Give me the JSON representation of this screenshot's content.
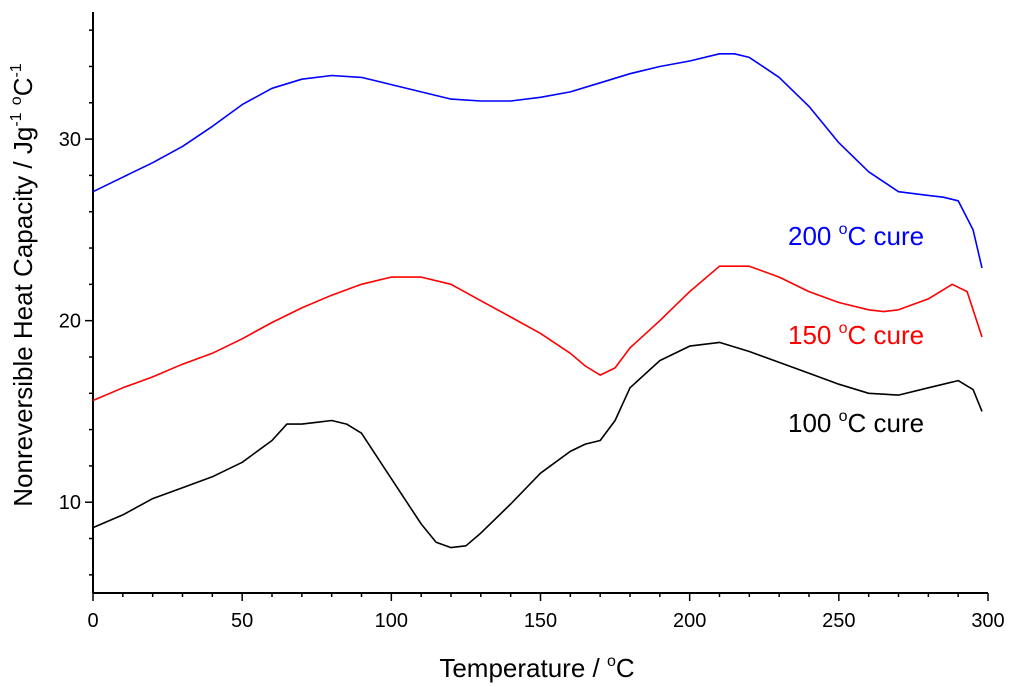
{
  "chart_data": {
    "type": "line",
    "title": "",
    "xlabel": {
      "main": "Temperature / ",
      "sup": "o",
      "tail": "C"
    },
    "ylabel": {
      "a": "Nonreversible Heat Capacity / Jg",
      "sup1": "-1",
      "b": " ",
      "sup2": "o",
      "c": "C",
      "sup3": "-1"
    },
    "xlim": [
      0,
      300
    ],
    "ylim": [
      5,
      37
    ],
    "xticks": [
      0,
      50,
      100,
      150,
      200,
      250,
      300
    ],
    "yticks": [
      10,
      20,
      30
    ],
    "grid": false,
    "series": [
      {
        "name": "200 °C cure",
        "label": {
          "num": "200 ",
          "sup": "o",
          "rest": "C cure"
        },
        "color": "#0000ff",
        "x": [
          0,
          10,
          20,
          30,
          40,
          50,
          60,
          70,
          80,
          90,
          100,
          110,
          120,
          130,
          140,
          150,
          160,
          170,
          180,
          190,
          200,
          210,
          215,
          220,
          230,
          240,
          250,
          260,
          270,
          280,
          285,
          290,
          295,
          298
        ],
        "y": [
          27.1,
          27.9,
          28.7,
          29.6,
          30.7,
          31.9,
          32.8,
          33.3,
          33.5,
          33.4,
          33.0,
          32.6,
          32.2,
          32.1,
          32.1,
          32.3,
          32.6,
          33.1,
          33.6,
          34.0,
          34.3,
          34.7,
          34.7,
          34.5,
          33.4,
          31.8,
          29.8,
          28.2,
          27.1,
          26.9,
          26.8,
          26.6,
          25.0,
          22.9
        ]
      },
      {
        "name": "150 °C cure",
        "label": {
          "num": "150 ",
          "sup": "o",
          "rest": "C cure"
        },
        "color": "#ff0000",
        "x": [
          0,
          10,
          20,
          30,
          40,
          50,
          60,
          70,
          80,
          90,
          100,
          110,
          120,
          130,
          140,
          150,
          160,
          165,
          170,
          175,
          180,
          190,
          200,
          210,
          220,
          230,
          240,
          250,
          260,
          265,
          270,
          280,
          288,
          293,
          298
        ],
        "y": [
          15.6,
          16.3,
          16.9,
          17.6,
          18.2,
          19.0,
          19.9,
          20.7,
          21.4,
          22.0,
          22.4,
          22.4,
          22.0,
          21.1,
          20.2,
          19.3,
          18.2,
          17.5,
          17.0,
          17.4,
          18.5,
          20.0,
          21.6,
          23.0,
          23.0,
          22.4,
          21.6,
          21.0,
          20.6,
          20.5,
          20.6,
          21.2,
          22.0,
          21.6,
          19.1
        ]
      },
      {
        "name": "100 °C cure",
        "label": {
          "num": "100 ",
          "sup": "o",
          "rest": "C cure"
        },
        "color": "#000000",
        "x": [
          0,
          10,
          20,
          30,
          40,
          50,
          60,
          65,
          70,
          75,
          80,
          85,
          90,
          100,
          110,
          115,
          120,
          125,
          130,
          140,
          150,
          160,
          165,
          170,
          175,
          180,
          190,
          200,
          210,
          220,
          230,
          240,
          250,
          260,
          270,
          280,
          290,
          295,
          298
        ],
        "y": [
          8.6,
          9.3,
          10.2,
          10.8,
          11.4,
          12.2,
          13.4,
          14.3,
          14.3,
          14.4,
          14.5,
          14.3,
          13.8,
          11.3,
          8.8,
          7.8,
          7.5,
          7.6,
          8.3,
          9.9,
          11.6,
          12.8,
          13.2,
          13.4,
          14.5,
          16.3,
          17.8,
          18.6,
          18.8,
          18.3,
          17.7,
          17.1,
          16.5,
          16.0,
          15.9,
          16.3,
          16.7,
          16.2,
          15.0
        ]
      }
    ]
  }
}
